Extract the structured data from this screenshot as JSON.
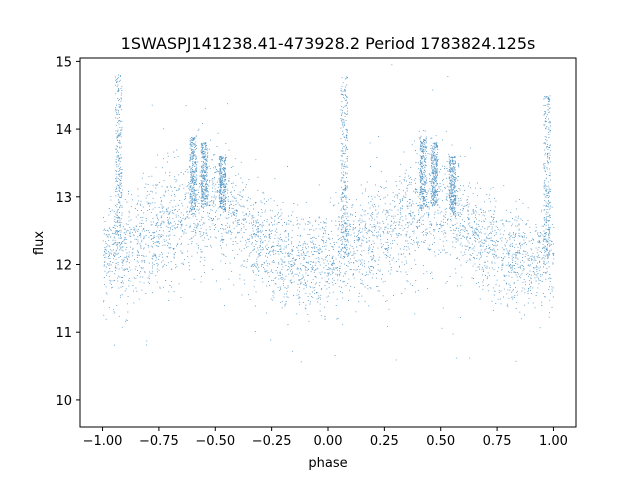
{
  "chart_data": {
    "type": "scatter",
    "title": "1SWASPJ141238.41-473928.2 Period 1783824.125s",
    "xlabel": "phase",
    "ylabel": "flux",
    "xlim": [
      -1.1,
      1.1
    ],
    "ylim": [
      9.6,
      15.05
    ],
    "x_ticks": [
      -1.0,
      -0.75,
      -0.5,
      -0.25,
      0.0,
      0.25,
      0.5,
      0.75,
      1.0
    ],
    "x_tick_labels": [
      "−1.00",
      "−0.75",
      "−0.50",
      "−0.25",
      "0.00",
      "0.25",
      "0.50",
      "0.75",
      "1.00"
    ],
    "y_ticks": [
      10,
      11,
      12,
      13,
      14,
      15
    ],
    "y_tick_labels": [
      "10",
      "11",
      "12",
      "13",
      "14",
      "15"
    ],
    "grid": false,
    "marker_color": "#1f77b4",
    "phase_range": [
      -1.0,
      1.0
    ],
    "profile": {
      "phase": [
        -1.0,
        -0.9,
        -0.8,
        -0.7,
        -0.6,
        -0.5,
        -0.4,
        -0.3,
        -0.2,
        -0.1,
        0.0,
        0.1,
        0.2,
        0.3,
        0.4,
        0.5,
        0.6,
        0.7,
        0.8,
        0.9,
        1.0
      ],
      "median_flux": [
        12.1,
        12.2,
        12.4,
        12.6,
        12.8,
        12.9,
        12.6,
        12.3,
        12.05,
        12.0,
        12.1,
        12.2,
        12.4,
        12.6,
        12.8,
        12.9,
        12.6,
        12.3,
        12.1,
        12.05,
        12.1
      ],
      "scatter": [
        0.35,
        0.4,
        0.4,
        0.45,
        0.45,
        0.45,
        0.4,
        0.35,
        0.35,
        0.35,
        0.35,
        0.4,
        0.4,
        0.45,
        0.45,
        0.45,
        0.4,
        0.35,
        0.35,
        0.35,
        0.35
      ]
    },
    "flare_columns": [
      {
        "phase": -0.93,
        "flux_max": 14.8
      },
      {
        "phase": -0.6,
        "flux_max": 13.9
      },
      {
        "phase": -0.55,
        "flux_max": 13.8
      },
      {
        "phase": -0.47,
        "flux_max": 13.6
      },
      {
        "phase": 0.07,
        "flux_max": 14.8
      },
      {
        "phase": 0.42,
        "flux_max": 13.9
      },
      {
        "phase": 0.47,
        "flux_max": 13.8
      },
      {
        "phase": 0.55,
        "flux_max": 13.6
      },
      {
        "phase": 0.97,
        "flux_max": 14.5
      }
    ],
    "point_count": 14000
  }
}
